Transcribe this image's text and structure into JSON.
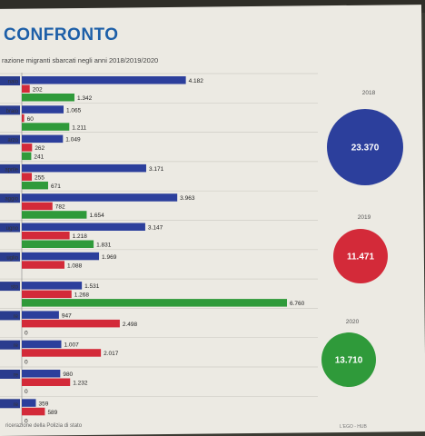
{
  "title": "CONFRONTO",
  "subtitle": "razione migranti sbarcati negli anni 2018/2019/2020",
  "source": "ricerazione della Polizia di stato",
  "credit": "L'EGO - HUB",
  "colors": {
    "2018": "#2c3f9c",
    "2019": "#d32a39",
    "2020": "#2f9a3a"
  },
  "chart_data": {
    "type": "bar",
    "orientation": "horizontal",
    "title": "CONFRONTO",
    "subtitle": "razione migranti sbarcati negli anni 2018/2019/2020",
    "categories": [
      "naio",
      "braio",
      "arzo",
      "aprile",
      "aggio",
      "ugno",
      "uglio",
      "sto",
      "re",
      "re",
      "re",
      "re"
    ],
    "series": [
      {
        "name": "2018",
        "values": [
          4182,
          1065,
          1049,
          3171,
          3963,
          3147,
          1969,
          1531,
          947,
          1007,
          980,
          359
        ]
      },
      {
        "name": "2019",
        "values": [
          202,
          60,
          262,
          255,
          782,
          1218,
          1088,
          1268,
          2498,
          2017,
          1232,
          589
        ]
      },
      {
        "name": "2020",
        "values": [
          1342,
          1211,
          241,
          671,
          1654,
          1831,
          null,
          6760,
          0,
          0,
          0,
          0
        ]
      }
    ],
    "value_labels": [
      [
        "4.182",
        "202",
        "1.342"
      ],
      [
        "1.065",
        "60",
        "1.211"
      ],
      [
        "1.049",
        "262",
        "241"
      ],
      [
        "3.171",
        "255",
        "671"
      ],
      [
        "3.963",
        "782",
        "1.654"
      ],
      [
        "3.147",
        "1.218",
        "1.831"
      ],
      [
        "1.969",
        "1.088",
        ""
      ],
      [
        "1.531",
        "1.268",
        "6.760"
      ],
      [
        "947",
        "2.498",
        "0"
      ],
      [
        "1.007",
        "2.017",
        "0"
      ],
      [
        "980",
        "1.232",
        "0"
      ],
      [
        "359",
        "589",
        "0"
      ]
    ],
    "totals": [
      {
        "year": "2018",
        "value": "23.370"
      },
      {
        "year": "2019",
        "value": "11.471"
      },
      {
        "year": "2020",
        "value": "13.710"
      }
    ]
  }
}
